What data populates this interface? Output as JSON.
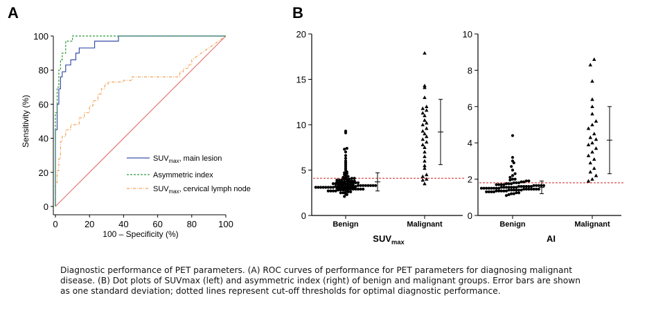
{
  "panel_a_letter": "A",
  "panel_b_letter": "B",
  "caption": {
    "line1": "Diagnostic  performance  of  PET  parameters.  (A)  ROC  curves  of  performance  for  PET  parameters  for  diagnosing   malignant",
    "line2": "disease.  (B)  Dot  plots  of  SUVmax  (left)  and  asymmetric  index  (right)  of  benign  and  malignant  groups.  Error  bars  are  shown",
    "line3": "as  one  standard  deviation;  dotted  lines  represent  cut-off  thresholds  for  optimal  diagnostic  performance."
  },
  "chart_data": [
    {
      "type": "line",
      "panel": "A",
      "xlabel": "100 – Specificity (%)",
      "ylabel": "Sensitivity (%)",
      "xlim": [
        0,
        100
      ],
      "ylim": [
        0,
        100
      ],
      "xticks": [
        "0",
        "20",
        "40",
        "60",
        "80",
        "100"
      ],
      "yticks": [
        "0",
        "20",
        "40",
        "60",
        "80",
        "100"
      ],
      "legend_position": "bottom-right",
      "series": [
        {
          "name": "SUVmax, main lesion",
          "name_base": "SUV",
          "name_sub": "max",
          "name_rest": ", main lesion",
          "color": "#3a4fa8",
          "dash": "solid",
          "x": [
            0,
            0,
            1,
            1,
            2,
            2,
            3,
            3,
            4,
            4,
            6,
            6,
            9,
            9,
            12,
            12,
            14,
            14,
            23,
            23,
            37,
            37,
            100
          ],
          "y": [
            0,
            45,
            45,
            60,
            60,
            69,
            69,
            76,
            76,
            79,
            79,
            83,
            83,
            86,
            86,
            90,
            90,
            93,
            93,
            97,
            97,
            100,
            100
          ]
        },
        {
          "name": "Asymmetric index",
          "name_base": "Asymmetric index",
          "name_sub": "",
          "name_rest": "",
          "color": "#2e9a3a",
          "dash": "3,2",
          "x": [
            0,
            0,
            1,
            1,
            2,
            2,
            3,
            3,
            4,
            4,
            6,
            6,
            10,
            10,
            100
          ],
          "y": [
            0,
            55,
            55,
            70,
            70,
            80,
            80,
            86,
            86,
            90,
            90,
            97,
            97,
            100,
            100
          ]
        },
        {
          "name": "SUVmax, cervical lymph node",
          "name_base": "SUV",
          "name_sub": "max",
          "name_rest": ", cervical lymph node",
          "color": "#f0a050",
          "dash": "4,2,1,2",
          "x": [
            0,
            0,
            1,
            1,
            2,
            2,
            3,
            3,
            4,
            4,
            6,
            6,
            9,
            9,
            14,
            14,
            17,
            17,
            20,
            20,
            22,
            22,
            25,
            25,
            27,
            27,
            29,
            29,
            31,
            31,
            40,
            40,
            45,
            45,
            56,
            56,
            73,
            73,
            75,
            75,
            78,
            78,
            80,
            80,
            100
          ],
          "y": [
            0,
            14,
            14,
            21,
            21,
            28,
            28,
            38,
            38,
            41,
            41,
            45,
            45,
            48,
            48,
            52,
            52,
            55,
            55,
            59,
            59,
            62,
            62,
            66,
            66,
            69,
            69,
            72,
            72,
            73,
            73,
            74,
            74,
            76,
            76,
            76,
            76,
            79,
            79,
            81,
            81,
            83,
            83,
            86,
            100
          ]
        },
        {
          "name": "",
          "color": "#e07878",
          "dash": "solid",
          "x": [
            0,
            100
          ],
          "y": [
            0,
            100
          ]
        }
      ]
    },
    {
      "type": "scatter",
      "panel": "B-left",
      "title": "",
      "xlabel_base": "SUV",
      "xlabel_sub": "max",
      "categories": [
        "Benign",
        "Malignant"
      ],
      "ylim": [
        0,
        20
      ],
      "yticks": [
        "0",
        "5",
        "10",
        "15",
        "20"
      ],
      "cutoff": 4.1,
      "benign": {
        "marker": "circle",
        "values": [
          2.1,
          2.3,
          2.4,
          2.5,
          2.5,
          2.6,
          2.6,
          2.6,
          2.7,
          2.7,
          2.7,
          2.7,
          2.8,
          2.8,
          2.8,
          2.8,
          2.8,
          2.9,
          2.9,
          2.9,
          2.9,
          2.9,
          2.9,
          3.0,
          3.0,
          3.0,
          3.0,
          3.0,
          3.0,
          3.0,
          3.0,
          3.1,
          3.1,
          3.1,
          3.1,
          3.1,
          3.1,
          3.1,
          3.1,
          3.2,
          3.2,
          3.2,
          3.2,
          3.2,
          3.2,
          3.2,
          3.2,
          3.2,
          3.3,
          3.3,
          3.3,
          3.3,
          3.3,
          3.3,
          3.3,
          3.3,
          3.4,
          3.4,
          3.4,
          3.4,
          3.4,
          3.4,
          3.4,
          3.5,
          3.5,
          3.5,
          3.5,
          3.5,
          3.5,
          3.6,
          3.6,
          3.6,
          3.6,
          3.6,
          3.7,
          3.7,
          3.7,
          3.7,
          3.8,
          3.8,
          3.8,
          3.8,
          3.9,
          3.9,
          3.9,
          4.0,
          4.0,
          4.0,
          4.1,
          4.1,
          4.2,
          4.2,
          4.3,
          4.4,
          4.5,
          4.6,
          4.7,
          4.8,
          5.0,
          5.2,
          5.4,
          5.6,
          5.8,
          6.0,
          6.3,
          6.6,
          7.0,
          7.3,
          7.4,
          9.1,
          9.3
        ],
        "mean": 3.7,
        "sd": 1.0
      },
      "malignant": {
        "marker": "triangle",
        "values": [
          3.5,
          3.9,
          4.0,
          4.3,
          4.5,
          5.2,
          5.5,
          6.0,
          6.5,
          7.0,
          7.5,
          7.8,
          8.1,
          8.4,
          8.7,
          9.0,
          9.3,
          9.6,
          10.0,
          10.2,
          10.5,
          11.0,
          11.3,
          11.6,
          11.8,
          12.0,
          13.0,
          14.1,
          14.3,
          17.9
        ],
        "mean": 9.2,
        "sd": 3.6
      }
    },
    {
      "type": "scatter",
      "panel": "B-right",
      "title": "",
      "xlabel": "AI",
      "categories": [
        "Benign",
        "Malignant"
      ],
      "ylim": [
        0,
        10
      ],
      "yticks": [
        "0",
        "2",
        "4",
        "6",
        "8",
        "10"
      ],
      "cutoff": 1.8,
      "benign": {
        "marker": "circle",
        "values": [
          1.1,
          1.15,
          1.2,
          1.2,
          1.25,
          1.25,
          1.3,
          1.3,
          1.3,
          1.3,
          1.35,
          1.35,
          1.35,
          1.35,
          1.35,
          1.4,
          1.4,
          1.4,
          1.4,
          1.4,
          1.4,
          1.45,
          1.45,
          1.45,
          1.45,
          1.45,
          1.45,
          1.45,
          1.5,
          1.5,
          1.5,
          1.5,
          1.5,
          1.5,
          1.5,
          1.5,
          1.55,
          1.55,
          1.55,
          1.55,
          1.55,
          1.55,
          1.55,
          1.6,
          1.6,
          1.6,
          1.6,
          1.6,
          1.6,
          1.65,
          1.65,
          1.65,
          1.65,
          1.65,
          1.7,
          1.7,
          1.7,
          1.7,
          1.75,
          1.75,
          1.75,
          1.8,
          1.8,
          1.8,
          1.85,
          1.85,
          1.9,
          1.9,
          1.95,
          2.0,
          2.0,
          2.1,
          2.2,
          2.3,
          2.5,
          2.7,
          2.9,
          3.0,
          3.2,
          4.4
        ],
        "mean": 1.55,
        "sd": 0.35
      },
      "malignant": {
        "marker": "triangle",
        "values": [
          1.9,
          2.0,
          2.2,
          2.4,
          2.6,
          2.9,
          3.1,
          3.3,
          3.5,
          3.7,
          3.9,
          4.0,
          4.2,
          4.3,
          4.5,
          4.8,
          5.0,
          5.2,
          5.6,
          6.0,
          6.4,
          7.4,
          8.3,
          8.6
        ],
        "mean": 4.15,
        "sd": 1.85
      }
    }
  ]
}
